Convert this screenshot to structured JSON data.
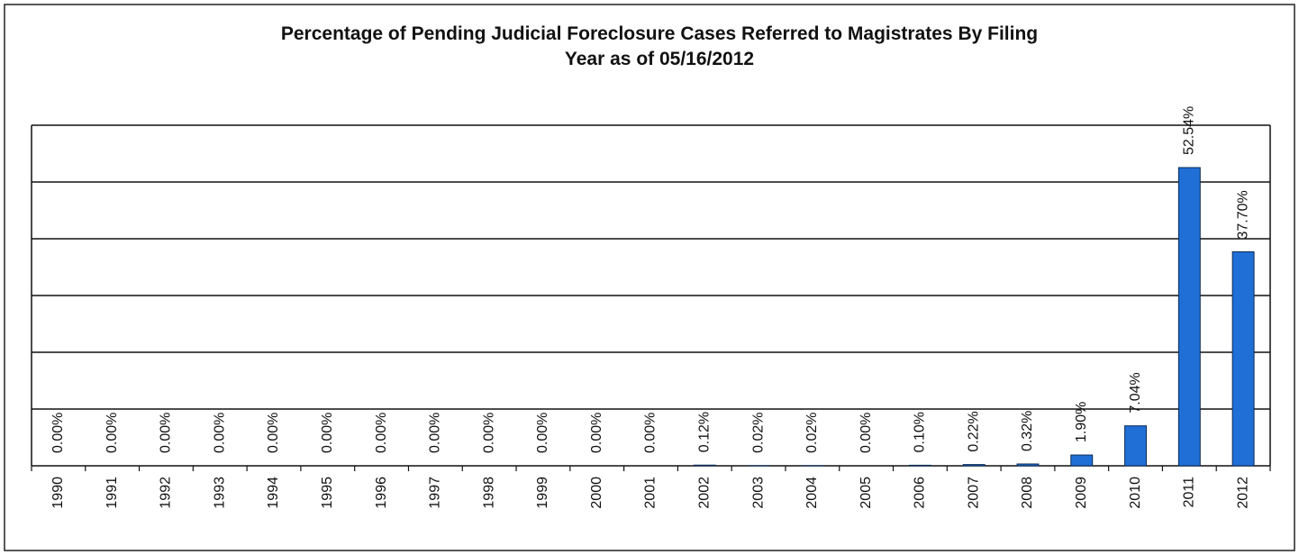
{
  "chart_data": {
    "type": "bar",
    "title": [
      "Percentage of Pending Judicial Foreclosure Cases Referred to Magistrates By Filing",
      "Year as of 05/16/2012"
    ],
    "categories": [
      "1990",
      "1991",
      "1992",
      "1993",
      "1994",
      "1995",
      "1996",
      "1997",
      "1998",
      "1999",
      "2000",
      "2001",
      "2002",
      "2003",
      "2004",
      "2005",
      "2006",
      "2007",
      "2008",
      "2009",
      "2010",
      "2011",
      "2012"
    ],
    "values": [
      0,
      0,
      0,
      0,
      0,
      0,
      0,
      0,
      0,
      0,
      0,
      0,
      0.12,
      0.02,
      0.02,
      0,
      0.1,
      0.22,
      0.32,
      1.9,
      7.04,
      52.54,
      37.7
    ],
    "value_labels": [
      "0.00%",
      "0.00%",
      "0.00%",
      "0.00%",
      "0.00%",
      "0.00%",
      "0.00%",
      "0.00%",
      "0.00%",
      "0.00%",
      "0.00%",
      "0.00%",
      "0.12%",
      "0.02%",
      "0.02%",
      "0.00%",
      "0.10%",
      "0.22%",
      "0.32%",
      "1.90%",
      "7.04%",
      "52.54%",
      "37.70%"
    ],
    "color": "#1f6fd6",
    "ylim": [
      0,
      60
    ],
    "yticks": [
      0,
      10,
      20,
      30,
      40,
      50,
      60
    ],
    "grid": true
  }
}
